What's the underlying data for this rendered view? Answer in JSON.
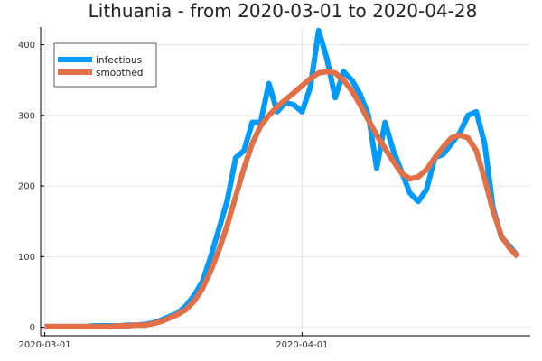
{
  "chart_data": {
    "type": "line",
    "title": "Lithuania - from 2020-03-01 to 2020-04-28",
    "xlabel": "",
    "ylabel": "",
    "x_range_days": [
      -0.5,
      58.5
    ],
    "ylim": [
      -12,
      425
    ],
    "x_ticks": [
      {
        "day": 0,
        "label": "2020-03-01"
      },
      {
        "day": 31,
        "label": "2020-04-01"
      }
    ],
    "y_ticks": [
      0,
      100,
      200,
      300,
      400
    ],
    "grid": true,
    "legend_position": "top-left",
    "colors": {
      "infectious": "#009af9",
      "smoothed": "#e26f46"
    },
    "series": [
      {
        "name": "infectious",
        "values": [
          1,
          1,
          1,
          1,
          1,
          1,
          2,
          2,
          2,
          2,
          3,
          3,
          4,
          6,
          10,
          15,
          20,
          30,
          45,
          65,
          100,
          140,
          180,
          240,
          250,
          290,
          290,
          345,
          305,
          318,
          315,
          305,
          340,
          420,
          380,
          325,
          362,
          350,
          330,
          300,
          225,
          290,
          250,
          220,
          190,
          178,
          195,
          240,
          245,
          260,
          275,
          300,
          305,
          260,
          170,
          128,
          115,
          100
        ],
        "stroke_width": 6
      },
      {
        "name": "smoothed",
        "values": [
          1,
          1,
          1,
          1,
          1,
          1,
          1,
          1,
          1,
          2,
          2,
          3,
          3,
          5,
          8,
          13,
          18,
          25,
          37,
          55,
          80,
          110,
          145,
          185,
          225,
          260,
          285,
          300,
          312,
          322,
          332,
          342,
          352,
          360,
          362,
          360,
          350,
          335,
          315,
          293,
          272,
          253,
          235,
          218,
          210,
          213,
          223,
          240,
          255,
          268,
          272,
          268,
          250,
          210,
          165,
          130,
          112,
          100
        ],
        "stroke_width": 6
      }
    ]
  }
}
